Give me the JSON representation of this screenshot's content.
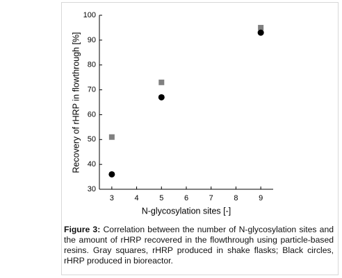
{
  "chart_data": {
    "type": "scatter",
    "x_label": "N-glycosylation sites [-]",
    "y_label": "Recovery of rHRP in flowthrough [%]",
    "xlim": [
      2.5,
      9.5
    ],
    "xticks": [
      3,
      4,
      5,
      6,
      7,
      8,
      9
    ],
    "ylim": [
      30,
      100
    ],
    "yticks": [
      30,
      40,
      50,
      60,
      70,
      80,
      90,
      100
    ],
    "series": [
      {
        "marker": "square",
        "color": "#808080",
        "x": [
          3,
          5,
          9
        ],
        "values": [
          51,
          73,
          95
        ]
      },
      {
        "marker": "circle",
        "color": "#000000",
        "x": [
          3,
          5,
          9
        ],
        "values": [
          36,
          67,
          93
        ]
      }
    ]
  },
  "caption": {
    "label": "Figure 3:",
    "text": "Correlation between the number of N-glycosylation sites and the amount of rHRP recovered in the flowthrough using particle-based resins. Gray squares, rHRP produced in shake flasks; Black circles, rHRP produced in bioreactor."
  }
}
